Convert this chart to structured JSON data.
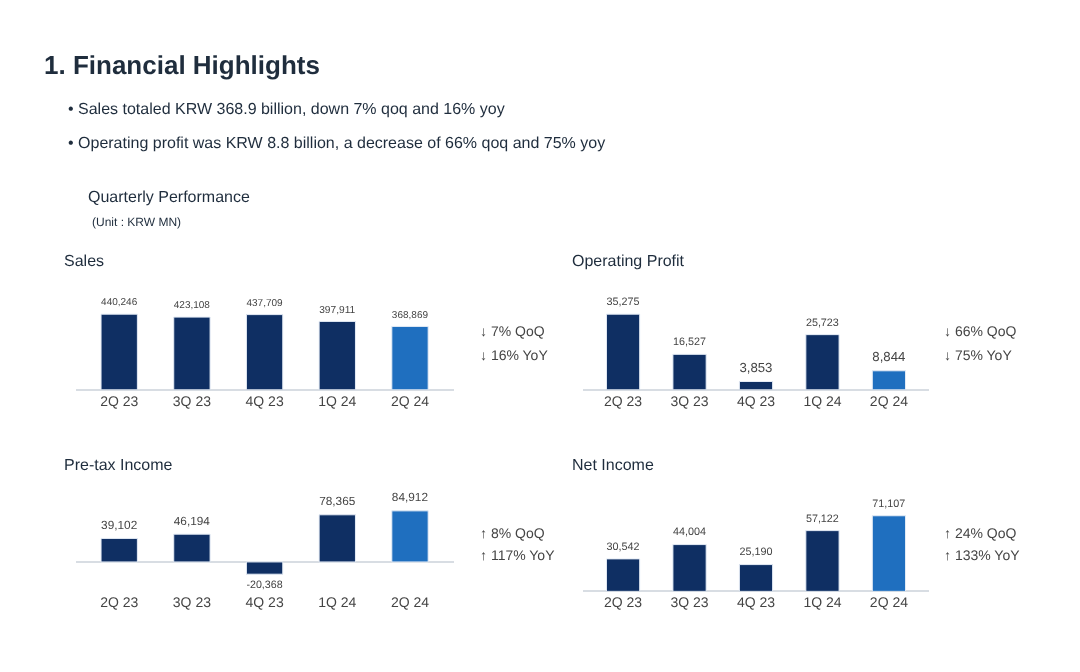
{
  "chart_data": [
    {
      "type": "other",
      "title": "1. Financial Highlights",
      "annotations": [
        "• Sales totaled KRW 368.9 billion, down 7% qoq and 16% yoy",
        "• Operating profit was KRW 8.8 billion, a decrease of 66% qoq and 75% yoy",
        "Quarterly Performance",
        "(Unit : KRW MN)"
      ]
    },
    {
      "type": "bar",
      "title": "Sales",
      "categories": [
        "2Q 23",
        "3Q 23",
        "4Q 23",
        "1Q 24",
        "2Q 24"
      ],
      "values": [
        440246,
        423108,
        437709,
        397911,
        368869
      ],
      "value_labels": [
        "440,246",
        "423,108",
        "437,709",
        "397,911",
        "368,869"
      ],
      "colors": [
        "#0f2f63",
        "#0f2f63",
        "#0f2f63",
        "#0f2f63",
        "#1f6fbf"
      ],
      "tick_labels": "x",
      "annotations": [
        "↓ 7% QoQ",
        "↓ 16% YoY"
      ]
    },
    {
      "type": "bar",
      "title": "Operating Profit",
      "categories": [
        "2Q 23",
        "3Q 23",
        "4Q 23",
        "1Q 24",
        "2Q 24"
      ],
      "values": [
        35275,
        16527,
        3853,
        25723,
        8844
      ],
      "value_labels": [
        "35,275",
        "16,527",
        "3,853",
        "25,723",
        "8,844"
      ],
      "colors": [
        "#0f2f63",
        "#0f2f63",
        "#0f2f63",
        "#0f2f63",
        "#1f6fbf"
      ],
      "tick_labels": "x",
      "annotations": [
        "↓ 66% QoQ",
        "↓ 75% YoY"
      ]
    },
    {
      "type": "bar",
      "title": "Pre-tax Income",
      "categories": [
        "2Q 23",
        "3Q 23",
        "4Q 23",
        "1Q 24",
        "2Q 24"
      ],
      "values": [
        39102,
        46194,
        -20368,
        78365,
        84912
      ],
      "value_labels": [
        "39,102",
        "46,194",
        "-20,368",
        "78,365",
        "84,912"
      ],
      "colors": [
        "#0f2f63",
        "#0f2f63",
        "#0f2f63",
        "#0f2f63",
        "#1f6fbf"
      ],
      "tick_labels": "x",
      "annotations": [
        "↑ 8% QoQ",
        "↑ 117% YoY"
      ]
    },
    {
      "type": "bar",
      "title": "Net Income",
      "categories": [
        "2Q 23",
        "3Q 23",
        "4Q 23",
        "1Q 24",
        "2Q 24"
      ],
      "values": [
        30542,
        44004,
        25190,
        57122,
        71107
      ],
      "value_labels": [
        "30,542",
        "44,004",
        "25,190",
        "57,122",
        "71,107"
      ],
      "colors": [
        "#0f2f63",
        "#0f2f63",
        "#0f2f63",
        "#0f2f63",
        "#1f6fbf"
      ],
      "tick_labels": "x",
      "annotations": [
        "↑ 24% QoQ",
        "↑ 133% YoY"
      ]
    }
  ]
}
